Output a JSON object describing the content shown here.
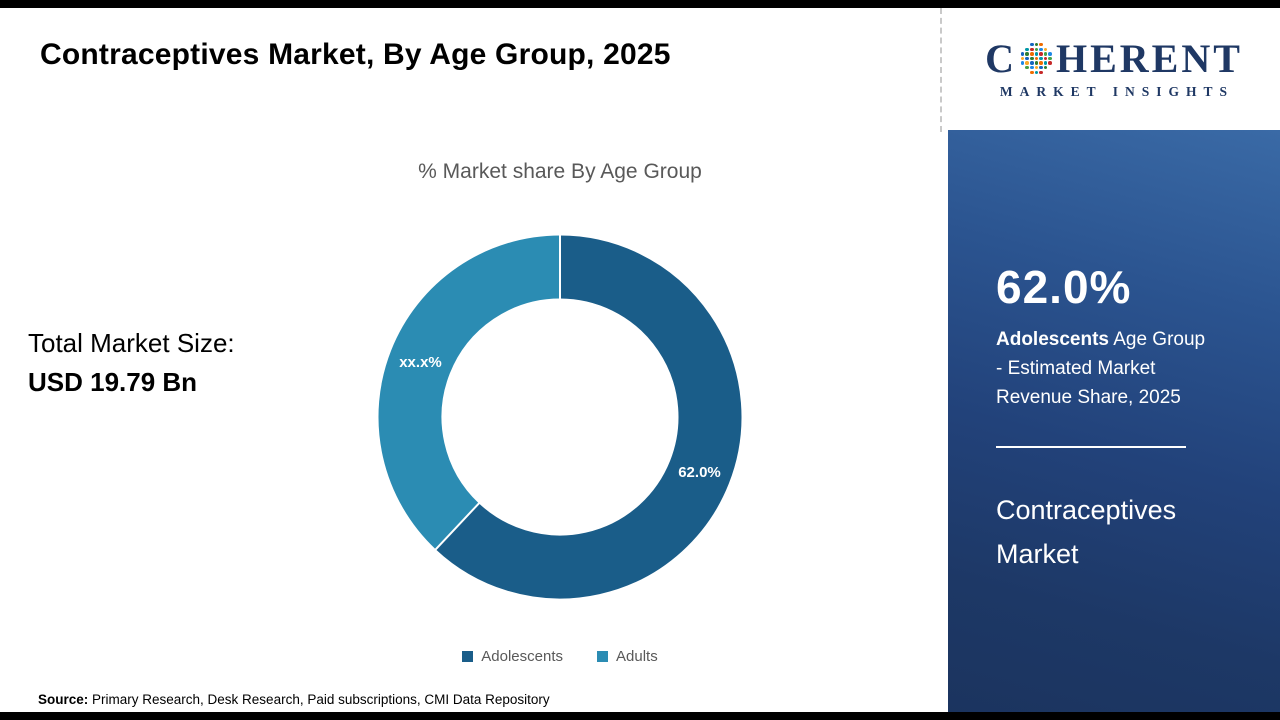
{
  "page": {
    "title": "Contraceptives Market, By Age Group, 2025",
    "source_label": "Source:",
    "source_text": " Primary Research, Desk Research, Paid subscriptions, CMI Data Repository"
  },
  "main": {
    "total_label": "Total Market Size:",
    "total_value": "USD 19.79 Bn"
  },
  "chart_data": {
    "type": "pie",
    "donut": true,
    "title": "% Market share By Age Group",
    "categories": [
      "Adolescents",
      "Adults"
    ],
    "values": [
      62.0,
      38.0
    ],
    "slice_labels": [
      "62.0%",
      "xx.x%"
    ],
    "colors": [
      "#1a5d89",
      "#2b8cb3"
    ],
    "legend_position": "bottom"
  },
  "sidebar": {
    "logo": {
      "prefix": "C",
      "suffix": "HERENT",
      "subtext": "MARKET INSIGHTS"
    },
    "stat_value": "62.0%",
    "stat_desc_bold": "Adolescents",
    "stat_desc_rest": " Age Group - Estimated Market Revenue Share, 2025",
    "product_title": "Contraceptives Market"
  },
  "theme": {
    "brand_navy": "#1f3864",
    "panel_top": "#3a6aa6",
    "panel_bottom": "#1b345f",
    "text_gray": "#595959"
  }
}
